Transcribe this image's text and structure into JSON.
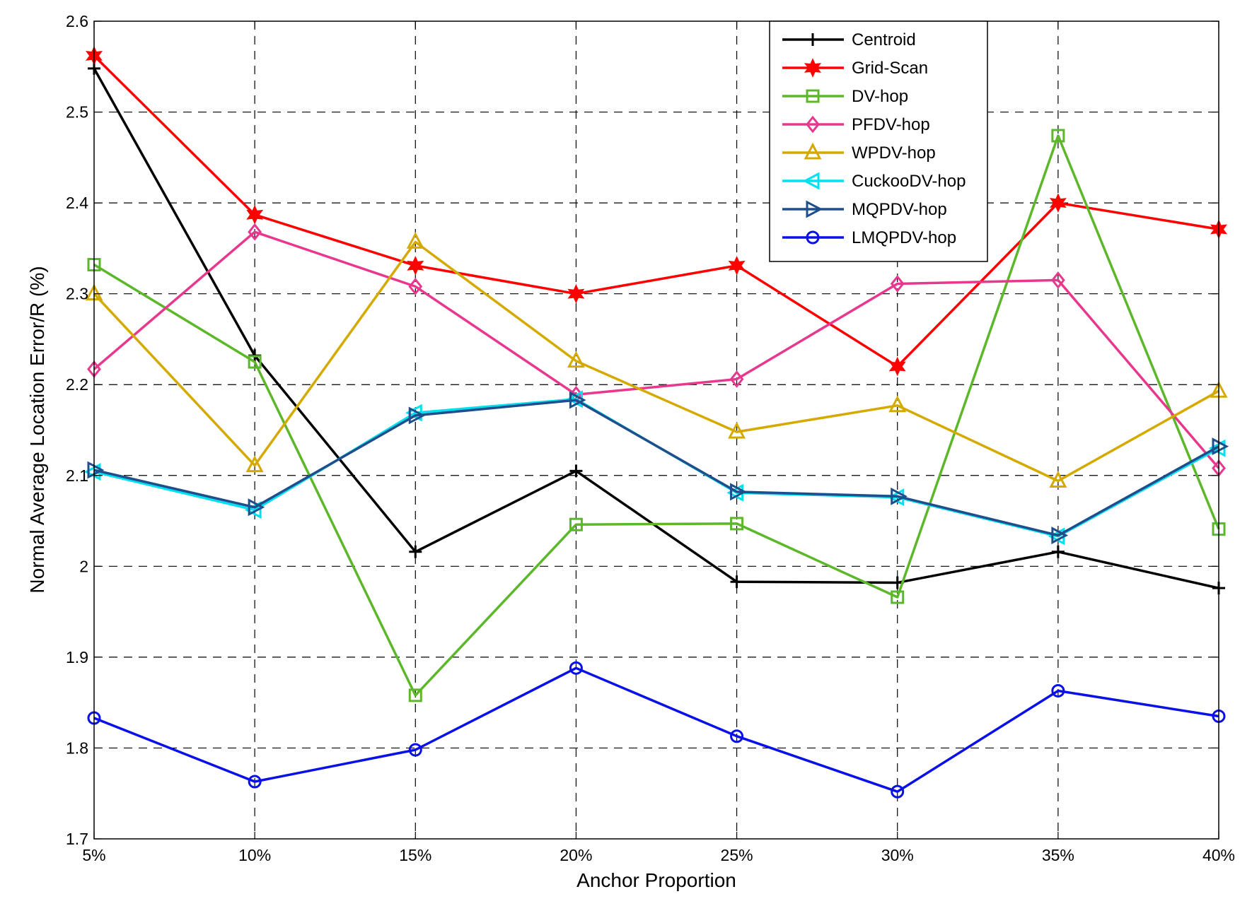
{
  "chart_data": {
    "type": "line",
    "title": "",
    "xlabel": "Anchor Proportion",
    "ylabel": "Normal Average Location Error/R (%)",
    "categories": [
      "5%",
      "10%",
      "15%",
      "20%",
      "25%",
      "30%",
      "35%",
      "40%"
    ],
    "ylim": [
      1.7,
      2.6
    ],
    "yticks": [
      1.7,
      1.8,
      1.9,
      2,
      2.1,
      2.2,
      2.3,
      2.4,
      2.5,
      2.6
    ],
    "ytick_labels": [
      "1.7",
      "1.8",
      "1.9",
      "2",
      "2.1",
      "2.2",
      "2.3",
      "2.4",
      "2.5",
      "2.6"
    ],
    "grid": true,
    "legend_position": "top-right",
    "series": [
      {
        "name": "Centroid",
        "color": "#000000",
        "marker": "plus",
        "values": [
          2.548,
          2.232,
          2.016,
          2.105,
          1.983,
          1.982,
          2.016,
          1.976
        ]
      },
      {
        "name": "Grid-Scan",
        "color": "#ff0000",
        "marker": "star",
        "values": [
          2.562,
          2.387,
          2.331,
          2.3,
          2.331,
          2.22,
          2.4,
          2.371
        ]
      },
      {
        "name": "DV-hop",
        "color": "#5cb82a",
        "marker": "square",
        "values": [
          2.332,
          2.225,
          1.858,
          2.046,
          2.047,
          1.966,
          2.474,
          2.041
        ]
      },
      {
        "name": "PFDV-hop",
        "color": "#e8388e",
        "marker": "diamond",
        "values": [
          2.217,
          2.368,
          2.308,
          2.189,
          2.206,
          2.311,
          2.315,
          2.108
        ]
      },
      {
        "name": "WPDV-hop",
        "color": "#d4aa00",
        "marker": "triangle-up",
        "values": [
          2.3,
          2.111,
          2.357,
          2.226,
          2.148,
          2.177,
          2.094,
          2.193
        ]
      },
      {
        "name": "CuckooDV-hop",
        "color": "#00e0f0",
        "marker": "triangle-left",
        "values": [
          2.104,
          2.062,
          2.169,
          2.184,
          2.081,
          2.076,
          2.033,
          2.13
        ]
      },
      {
        "name": "MQPDV-hop",
        "color": "#1f4e8c",
        "marker": "triangle-right",
        "values": [
          2.106,
          2.065,
          2.166,
          2.183,
          2.082,
          2.077,
          2.034,
          2.132
        ]
      },
      {
        "name": "LMQPDV-hop",
        "color": "#0a10e8",
        "marker": "circle",
        "values": [
          1.833,
          1.763,
          1.798,
          1.888,
          1.813,
          1.752,
          1.863,
          1.835
        ]
      }
    ]
  }
}
